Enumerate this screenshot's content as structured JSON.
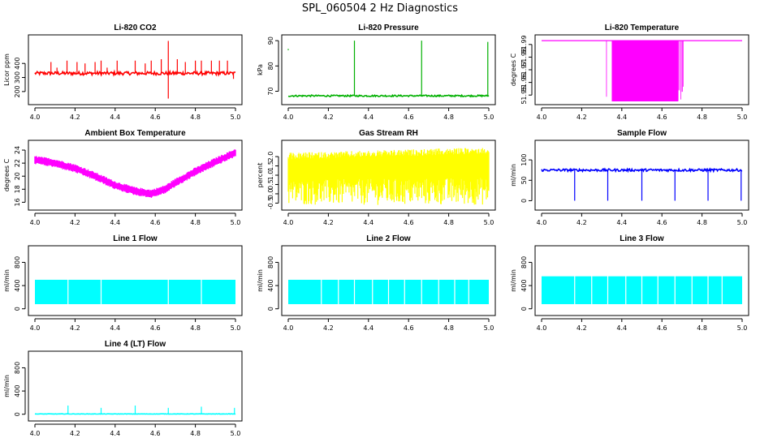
{
  "figure_title": "SPL_060504  2 Hz Diagnostics",
  "chart_data": [
    {
      "type": "line",
      "title": "Li-820 CO2",
      "xlabel": "",
      "ylabel": "Licor ppm",
      "xlim": [
        4.0,
        5.0
      ],
      "ylim": [
        130,
        580
      ],
      "xticks": [
        4.0,
        4.2,
        4.4,
        4.6,
        4.8,
        5.0
      ],
      "xtick_labels": [
        "4.0",
        "4.2",
        "4.4",
        "4.6",
        "4.8",
        "5.0"
      ],
      "yticks": [
        200,
        300,
        400
      ],
      "ytick_labels": [
        "200",
        "300",
        "400"
      ],
      "color": "#ff0000",
      "series": [
        {
          "name": "CO2",
          "baseline": 330,
          "noise": 12,
          "spikes": [
            [
              4.08,
              410
            ],
            [
              4.11,
              370
            ],
            [
              4.16,
              420
            ],
            [
              4.21,
              410
            ],
            [
              4.25,
              400
            ],
            [
              4.3,
              410
            ],
            [
              4.33,
              420
            ],
            [
              4.36,
              370
            ],
            [
              4.41,
              420
            ],
            [
              4.5,
              420
            ],
            [
              4.55,
              400
            ],
            [
              4.58,
              420
            ],
            [
              4.63,
              430
            ],
            [
              4.665,
              560
            ],
            [
              4.665,
              150
            ],
            [
              4.71,
              430
            ],
            [
              4.75,
              410
            ],
            [
              4.8,
              420
            ],
            [
              4.83,
              420
            ],
            [
              4.88,
              420
            ],
            [
              4.92,
              420
            ],
            [
              4.96,
              420
            ],
            [
              4.99,
              290
            ]
          ]
        }
      ]
    },
    {
      "type": "line",
      "title": "Li-820 Pressure",
      "xlabel": "",
      "ylabel": "kPa",
      "xlim": [
        4.0,
        5.0
      ],
      "ylim": [
        66,
        91
      ],
      "xticks": [
        4.0,
        4.2,
        4.4,
        4.6,
        4.8,
        5.0
      ],
      "xtick_labels": [
        "4.0",
        "4.2",
        "4.4",
        "4.6",
        "4.8",
        "5.0"
      ],
      "yticks": [
        70,
        80,
        90
      ],
      "ytick_labels": [
        "70",
        "80",
        "90"
      ],
      "color": "#00b000",
      "series": [
        {
          "name": "Pressure",
          "baseline": 68.2,
          "noise": 0.3,
          "spikes": [
            [
              4.33,
              90
            ],
            [
              4.665,
              90
            ],
            [
              4.995,
              89.5
            ]
          ],
          "outliers": [
            [
              4.0,
              86.5
            ]
          ]
        }
      ]
    },
    {
      "type": "line",
      "title": "Li-820 Temperature",
      "xlabel": "",
      "ylabel": "degrees C",
      "xlim": [
        4.0,
        5.0
      ],
      "ylim": [
        51.945,
        51.995
      ],
      "xticks": [
        4.0,
        4.2,
        4.4,
        4.6,
        4.8,
        5.0
      ],
      "xtick_labels": [
        "4.0",
        "4.2",
        "4.4",
        "4.6",
        "4.8",
        "5.0"
      ],
      "yticks": [
        51.95,
        51.96,
        51.97,
        51.98,
        51.99
      ],
      "ytick_labels": [
        "51.95",
        "51.96",
        "51.97",
        "51.98",
        "51.99"
      ],
      "color": "#ff00ff",
      "series": [
        {
          "name": "Temperature",
          "baseline": 51.993,
          "band_start": 4.32,
          "band_end": 4.71,
          "band_low": 51.945,
          "band_high": 51.993
        }
      ]
    },
    {
      "type": "line",
      "title": "Ambient Box Temperature",
      "xlabel": "",
      "ylabel": "degrees C",
      "xlim": [
        4.0,
        5.0
      ],
      "ylim": [
        15.3,
        25.0
      ],
      "xticks": [
        4.0,
        4.2,
        4.4,
        4.6,
        4.8,
        5.0
      ],
      "xtick_labels": [
        "4.0",
        "4.2",
        "4.4",
        "4.6",
        "4.8",
        "5.0"
      ],
      "yticks": [
        16,
        18,
        20,
        22,
        24
      ],
      "ytick_labels": [
        "16",
        "18",
        "20",
        "22",
        "24"
      ],
      "color": "#ff00ff",
      "series": [
        {
          "name": "Ambient",
          "x": [
            4.0,
            4.1,
            4.2,
            4.3,
            4.4,
            4.5,
            4.58,
            4.65,
            4.7,
            4.8,
            4.9,
            5.0
          ],
          "y": [
            22.5,
            22.0,
            21.2,
            20.0,
            18.6,
            17.7,
            17.3,
            18.0,
            19.0,
            20.7,
            22.2,
            23.6
          ],
          "band": 1.3
        }
      ]
    },
    {
      "type": "line",
      "title": "Gas Stream RH",
      "xlabel": "",
      "ylabel": "percent",
      "xlim": [
        4.0,
        5.0
      ],
      "ylim": [
        -0.7,
        2.7
      ],
      "xticks": [
        4.0,
        4.2,
        4.4,
        4.6,
        4.8,
        5.0
      ],
      "xtick_labels": [
        "4.0",
        "4.2",
        "4.4",
        "4.6",
        "4.8",
        "5.0"
      ],
      "yticks": [
        -0.5,
        0.0,
        0.5,
        1.0,
        1.5,
        2.0
      ],
      "ytick_labels": [
        "-0.5",
        "0.0",
        "0.5",
        "1.0",
        "1.5",
        "2.0"
      ],
      "color": "#ffff00",
      "series": [
        {
          "name": "RH",
          "x": [
            4.0,
            5.0
          ],
          "upper": [
            2.2,
            2.5
          ],
          "lower": [
            -0.6,
            -0.6
          ]
        }
      ]
    },
    {
      "type": "line",
      "title": "Sample Flow",
      "xlabel": "",
      "ylabel": "ml/min",
      "xlim": [
        4.0,
        5.0
      ],
      "ylim": [
        -15,
        140
      ],
      "xticks": [
        4.0,
        4.2,
        4.4,
        4.6,
        4.8,
        5.0
      ],
      "xtick_labels": [
        "4.0",
        "4.2",
        "4.4",
        "4.6",
        "4.8",
        "5.0"
      ],
      "yticks": [
        0,
        50,
        100
      ],
      "ytick_labels": [
        "0",
        "50",
        "100"
      ],
      "color": "#0000ff",
      "series": [
        {
          "name": "Sample",
          "baseline": 75,
          "noise": 3,
          "dips": [
            [
              4.165,
              0
            ],
            [
              4.33,
              0
            ],
            [
              4.5,
              0
            ],
            [
              4.665,
              0
            ],
            [
              4.83,
              0
            ],
            [
              4.995,
              0
            ]
          ]
        }
      ]
    },
    {
      "type": "line",
      "title": "Line 1 Flow",
      "xlabel": "",
      "ylabel": "ml/min",
      "xlim": [
        4.0,
        5.0
      ],
      "ylim": [
        -60,
        1030
      ],
      "xticks": [
        4.0,
        4.2,
        4.4,
        4.6,
        4.8,
        5.0
      ],
      "xtick_labels": [
        "4.0",
        "4.2",
        "4.4",
        "4.6",
        "4.8",
        "5.0"
      ],
      "yticks": [
        0,
        400,
        800
      ],
      "ytick_labels": [
        "0",
        "400",
        "800"
      ],
      "color": "#00ffff",
      "series": [
        {
          "name": "Line 1",
          "upper": 500,
          "lower": 80,
          "gaps": [
            4.165,
            4.33,
            4.665,
            4.83
          ]
        }
      ]
    },
    {
      "type": "line",
      "title": "Line 2 Flow",
      "xlabel": "",
      "ylabel": "ml/min",
      "xlim": [
        4.0,
        5.0
      ],
      "ylim": [
        -60,
        1030
      ],
      "xticks": [
        4.0,
        4.2,
        4.4,
        4.6,
        4.8,
        5.0
      ],
      "xtick_labels": [
        "4.0",
        "4.2",
        "4.4",
        "4.6",
        "4.8",
        "5.0"
      ],
      "yticks": [
        0,
        400,
        800
      ],
      "ytick_labels": [
        "0",
        "400",
        "800"
      ],
      "color": "#00ffff",
      "series": [
        {
          "name": "Line 2",
          "upper": 500,
          "lower": 80,
          "gaps": [
            4.165,
            4.25,
            4.33,
            4.42,
            4.5,
            4.58,
            4.665,
            4.75,
            4.83,
            4.9
          ]
        }
      ]
    },
    {
      "type": "line",
      "title": "Line 3 Flow",
      "xlabel": "",
      "ylabel": "ml/min",
      "xlim": [
        4.0,
        5.0
      ],
      "ylim": [
        -60,
        1030
      ],
      "xticks": [
        4.0,
        4.2,
        4.4,
        4.6,
        4.8,
        5.0
      ],
      "xtick_labels": [
        "4.0",
        "4.2",
        "4.4",
        "4.6",
        "4.8",
        "5.0"
      ],
      "yticks": [
        0,
        400,
        800
      ],
      "ytick_labels": [
        "0",
        "400",
        "800"
      ],
      "color": "#00ffff",
      "series": [
        {
          "name": "Line 3",
          "upper": 560,
          "lower": 80,
          "gaps": [
            4.165,
            4.25,
            4.33,
            4.42,
            4.5,
            4.58,
            4.665,
            4.75,
            4.83,
            4.9
          ]
        }
      ]
    },
    {
      "type": "line",
      "title": "Line 4 (LT) Flow",
      "xlabel": "",
      "ylabel": "ml/min",
      "xlim": [
        4.0,
        5.0
      ],
      "ylim": [
        -60,
        1030
      ],
      "xticks": [
        4.0,
        4.2,
        4.4,
        4.6,
        4.8,
        5.0
      ],
      "xtick_labels": [
        "4.0",
        "4.2",
        "4.4",
        "4.6",
        "4.8",
        "5.0"
      ],
      "yticks": [
        0,
        400,
        800
      ],
      "ytick_labels": [
        "0",
        "400",
        "800"
      ],
      "color": "#00ffff",
      "series": [
        {
          "name": "Line 4",
          "baseline": 5,
          "noise": 3,
          "spikes": [
            [
              4.165,
              150
            ],
            [
              4.33,
              110
            ],
            [
              4.5,
              150
            ],
            [
              4.665,
              110
            ],
            [
              4.83,
              130
            ],
            [
              4.995,
              110
            ]
          ]
        }
      ]
    }
  ]
}
